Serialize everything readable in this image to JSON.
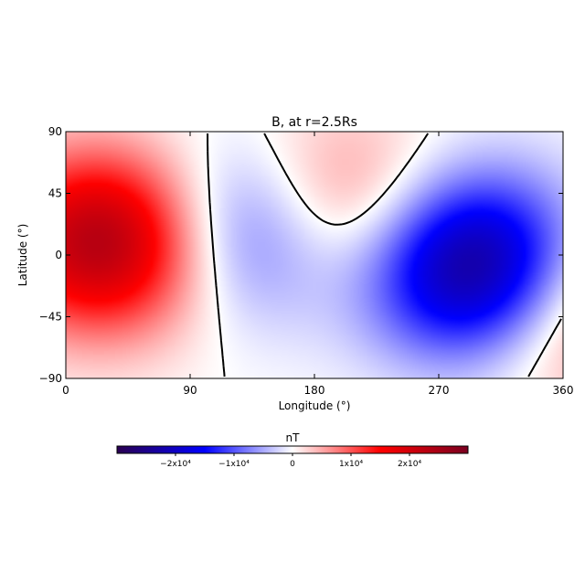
{
  "chart_data": {
    "type": "heatmap",
    "title": "B, at r=2.5Rs",
    "xlabel": "Longitude (°)",
    "ylabel": "Latitude (°)",
    "xlim": [
      0,
      360
    ],
    "ylim": [
      -90,
      90
    ],
    "x_ticks": [
      "0",
      "90",
      "180",
      "270",
      "360"
    ],
    "y_ticks": [
      "90",
      "45",
      "0",
      "−45",
      "−90"
    ],
    "colorbar": {
      "label": "nT",
      "range": [
        -30000,
        30000
      ],
      "tick_values": [
        -20000,
        -10000,
        0,
        10000,
        20000
      ],
      "tick_labels": [
        "−2x10⁴",
        "−1x10⁴",
        "0",
        "1x10⁴",
        "2x10⁴"
      ],
      "colors": [
        "#2a0050",
        "#0000ff",
        "#ffffff",
        "#ff0000",
        "#7a0020"
      ]
    },
    "features": [
      {
        "sign": "positive",
        "peak": 25000,
        "lon": 30,
        "lat": 10
      },
      {
        "sign": "positive",
        "peak": 12000,
        "lon": 190,
        "lat": 35
      },
      {
        "sign": "negative",
        "peak": -28000,
        "lon": 300,
        "lat": -10
      },
      {
        "sign": "negative",
        "peak": -15000,
        "lon": 135,
        "lat": 20
      },
      {
        "sign": "positive",
        "peak": 12000,
        "lon": 362,
        "lat": -35
      }
    ],
    "zero_contour": true
  }
}
